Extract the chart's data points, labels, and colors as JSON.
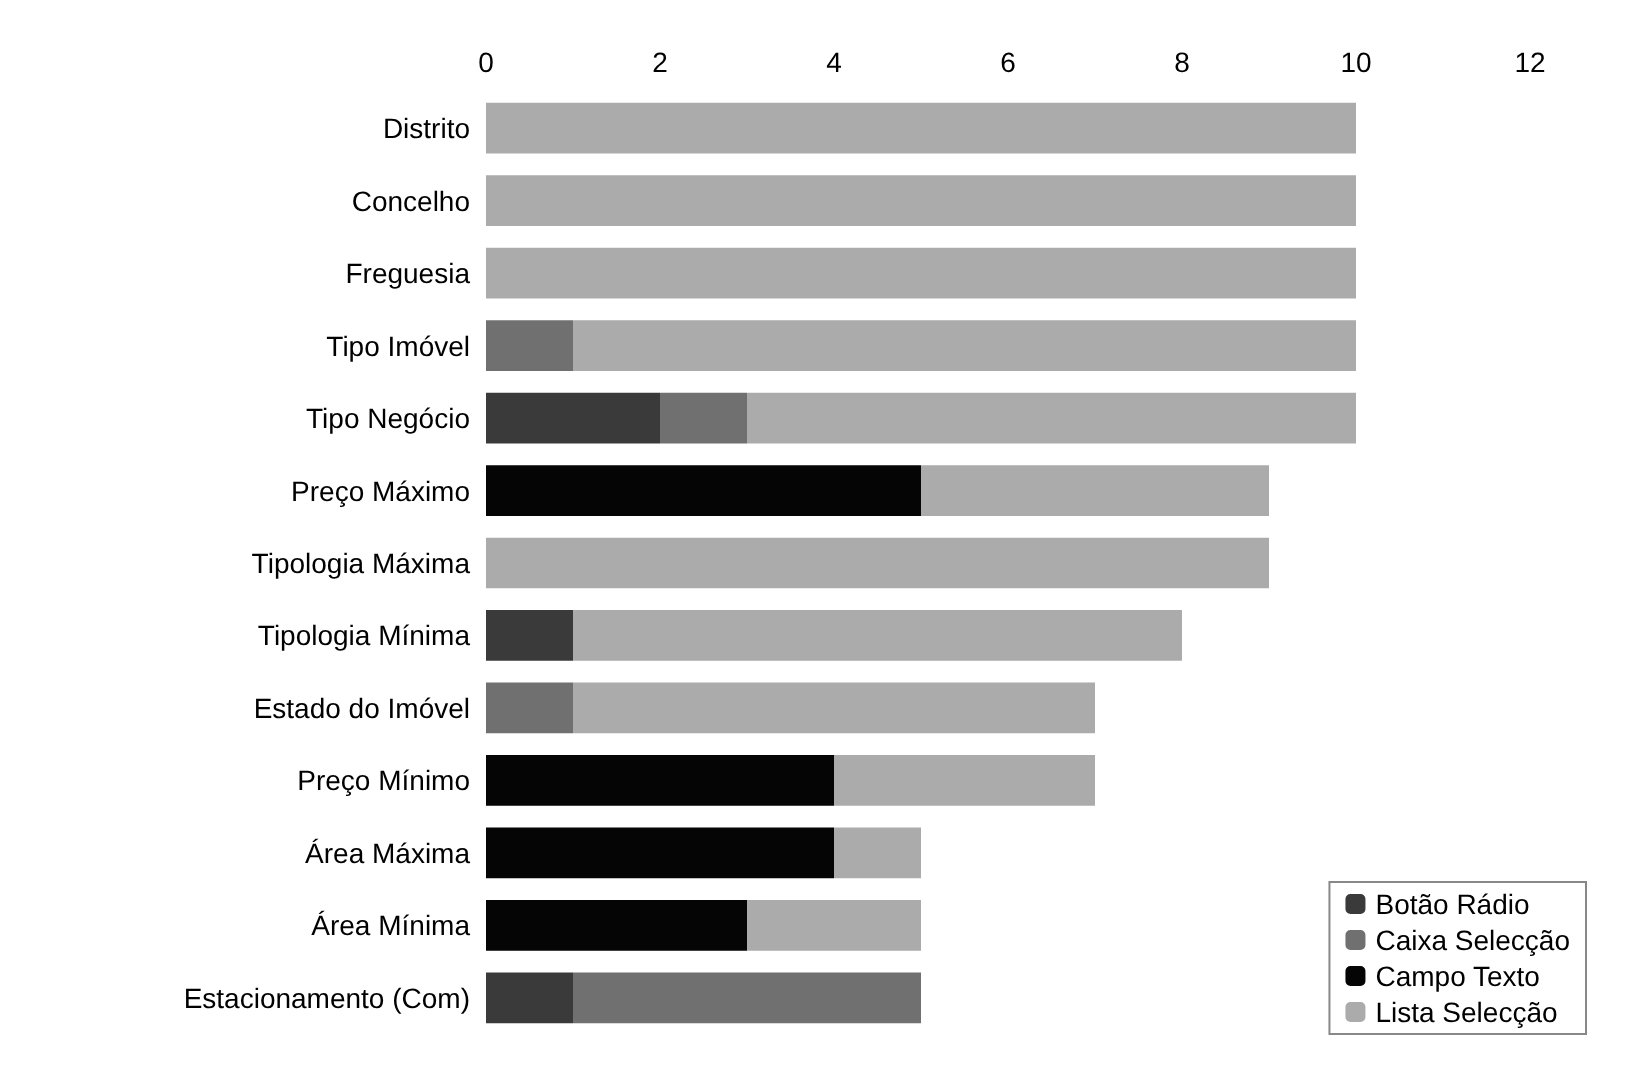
{
  "chart_data": {
    "type": "bar",
    "orientation": "horizontal",
    "stacked": true,
    "grid": false,
    "legend": "bottom right",
    "categories": [
      "Distrito",
      "Concelho",
      "Freguesia",
      "Tipo Imóvel",
      "Tipo Negócio",
      "Preço Máximo",
      "Tipologia Máxima",
      "Tipologia Mínima",
      "Estado do Imóvel",
      "Preço Mínimo",
      "Área Máxima",
      "Área Mínima",
      "Estacionamento (Com)"
    ],
    "xlim": [
      0,
      12
    ],
    "xticks": [
      0,
      2,
      4,
      6,
      8,
      10,
      12
    ],
    "series": [
      {
        "name": "Botão Rádio",
        "color": "#3a3a3a",
        "values": [
          0,
          0,
          0,
          0,
          2,
          0,
          0,
          1,
          0,
          0,
          0,
          0,
          1
        ]
      },
      {
        "name": "Caixa Selecção",
        "color": "#707070",
        "values": [
          0,
          0,
          0,
          1,
          1,
          0,
          0,
          0,
          1,
          0,
          0,
          0,
          4
        ]
      },
      {
        "name": "Campo Texto",
        "color": "#050505",
        "values": [
          0,
          0,
          0,
          0,
          0,
          5,
          0,
          0,
          0,
          4,
          4,
          3,
          0
        ]
      },
      {
        "name": "Lista Selecção",
        "color": "#ababab",
        "values": [
          10,
          10,
          10,
          9,
          7,
          4,
          9,
          7,
          6,
          3,
          1,
          2,
          0
        ]
      }
    ]
  }
}
